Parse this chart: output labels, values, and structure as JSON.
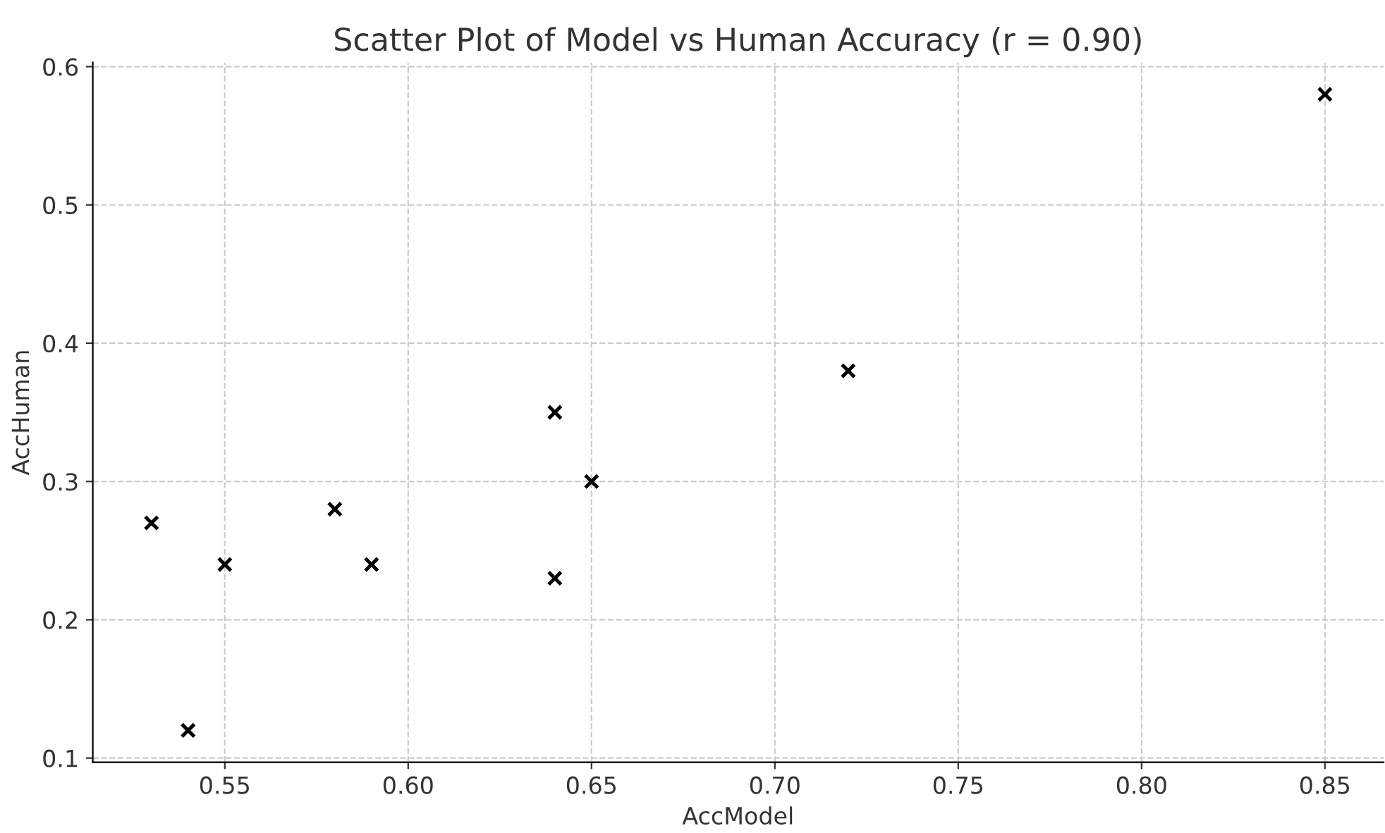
{
  "chart_data": {
    "type": "scatter",
    "title": "Scatter Plot of Model vs Human Accuracy (r = 0.90)",
    "xlabel": "AccModel",
    "ylabel": "AccHuman",
    "x": [
      0.53,
      0.54,
      0.55,
      0.58,
      0.59,
      0.64,
      0.64,
      0.65,
      0.72,
      0.85
    ],
    "values": [
      0.27,
      0.12,
      0.24,
      0.28,
      0.24,
      0.35,
      0.23,
      0.3,
      0.38,
      0.58
    ],
    "color": "#000000",
    "marker": "cross",
    "xlim": [
      0.514,
      0.866
    ],
    "ylim": [
      0.097,
      0.603
    ],
    "xticks": [
      {
        "value": 0.55,
        "label": "0.55"
      },
      {
        "value": 0.6,
        "label": "0.60"
      },
      {
        "value": 0.65,
        "label": "0.65"
      },
      {
        "value": 0.7,
        "label": "0.70"
      },
      {
        "value": 0.75,
        "label": "0.75"
      },
      {
        "value": 0.8,
        "label": "0.80"
      },
      {
        "value": 0.85,
        "label": "0.85"
      }
    ],
    "yticks": [
      0.1,
      0.2,
      0.3,
      0.4,
      0.5,
      0.6
    ],
    "grid": true
  }
}
